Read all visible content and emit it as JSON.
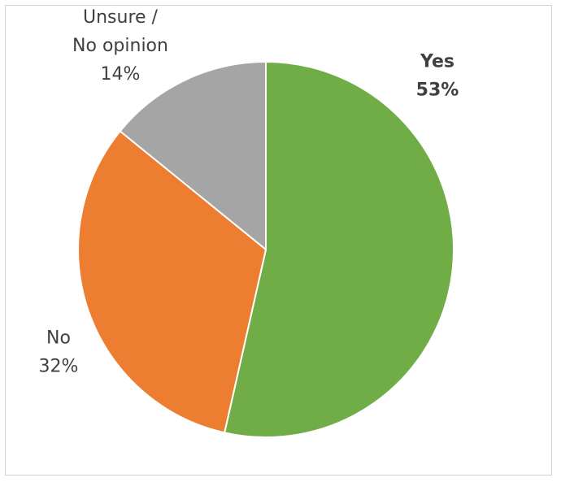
{
  "chart_data": {
    "type": "pie",
    "title": "",
    "slices": [
      {
        "label": "Yes",
        "value": 53,
        "value_text": "53%",
        "color": "#70ad47",
        "bold": true
      },
      {
        "label": "No",
        "value": 32,
        "value_text": "32%",
        "color": "#ed7d31",
        "bold": false
      },
      {
        "label": "Unsure /\nNo opinion",
        "value": 14,
        "value_text": "14%",
        "color": "#a5a5a5",
        "bold": false
      }
    ],
    "start": "12 o'clock",
    "direction": "clockwise",
    "legend": "none",
    "data_labels": "outside"
  }
}
